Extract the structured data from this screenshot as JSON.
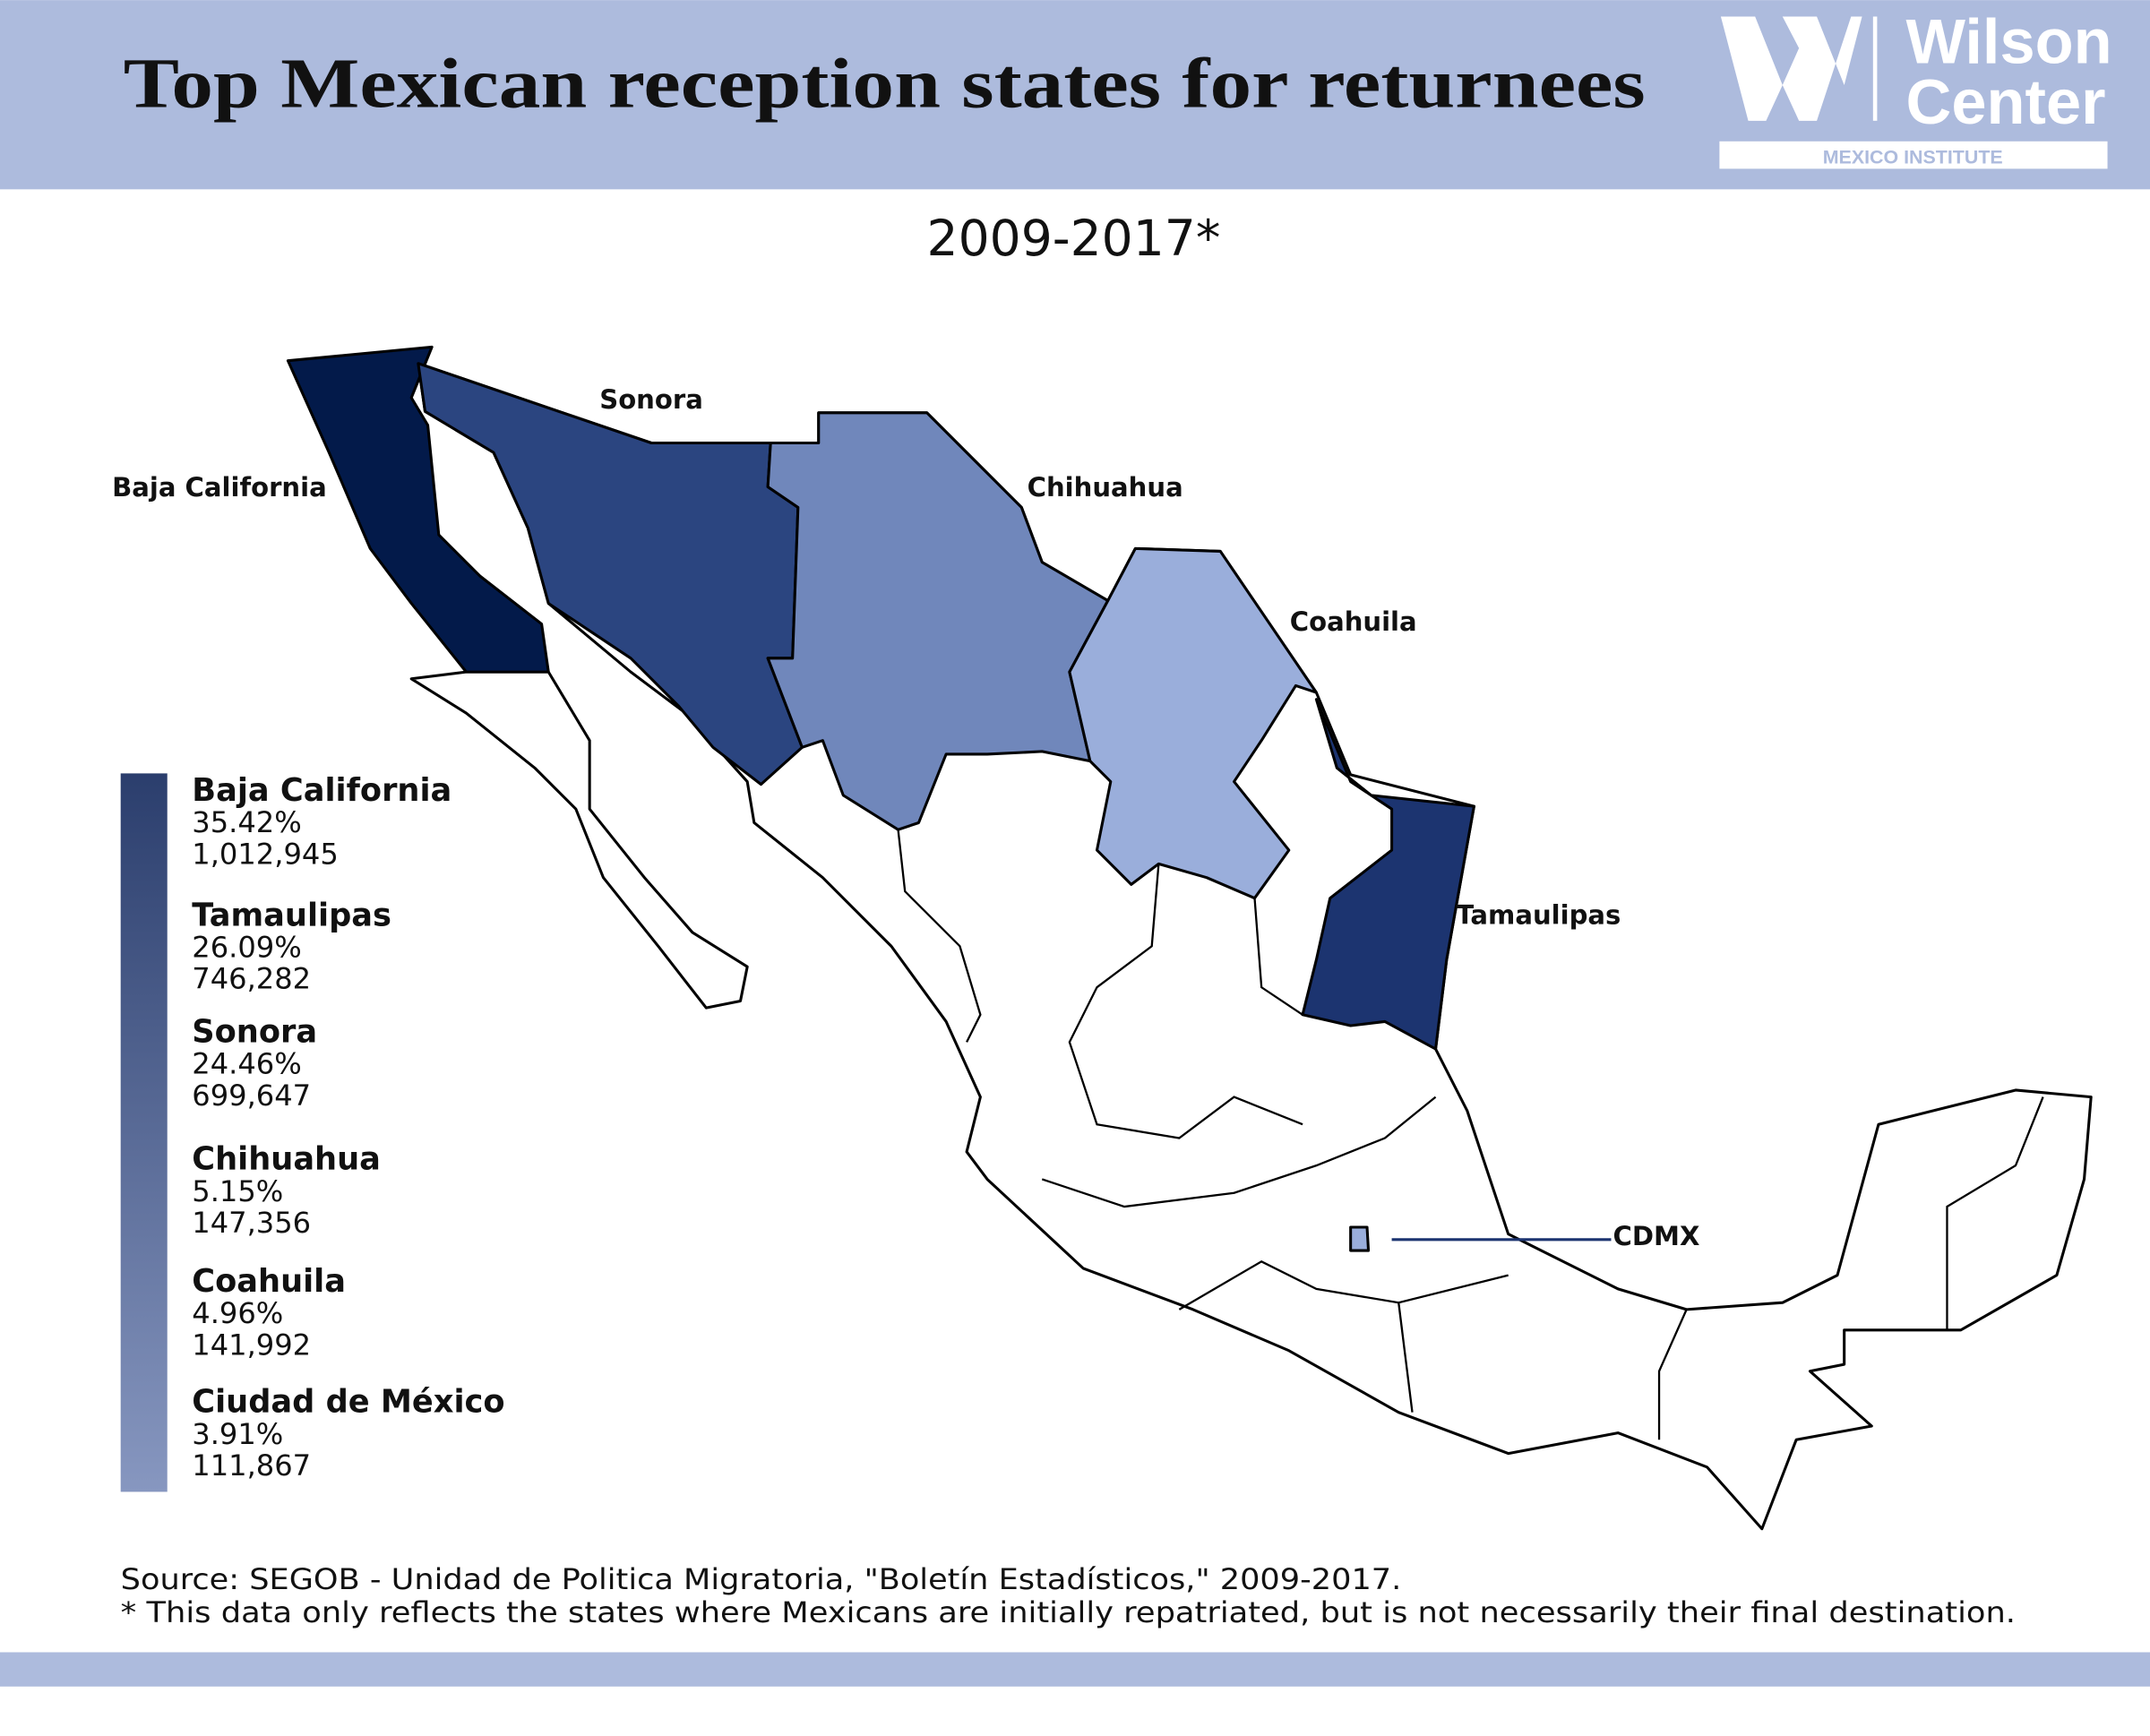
{
  "header": {
    "title": "Top Mexican reception states for returnees",
    "logo": {
      "line1": "Wilson",
      "line2": "Center",
      "subtitle": "MEXICO INSTITUTE"
    }
  },
  "subtitle": "2009-2017*",
  "map": {
    "labels": [
      "Sonora",
      "Baja California",
      "Chihuahua",
      "Coahuila",
      "Tamaulipas",
      "CDMX"
    ]
  },
  "legend": [
    {
      "name": "Baja California",
      "percent": "35.42%",
      "count": "1,012,945"
    },
    {
      "name": "Tamaulipas",
      "percent": "26.09%",
      "count": "746,282"
    },
    {
      "name": "Sonora",
      "percent": "24.46%",
      "count": "699,647"
    },
    {
      "name": "Chihuahua",
      "percent": "5.15%",
      "count": "147,356"
    },
    {
      "name": "Coahuila",
      "percent": "4.96%",
      "count": "141,992"
    },
    {
      "name": "Ciudad de México",
      "percent": "3.91%",
      "count": "111,867"
    }
  ],
  "footer": {
    "source": "Source: SEGOB - Unidad de Politica Migratoria, \"Boletín Estadísticos,\" 2009-2017.",
    "note": "* This data only reflects the states where Mexicans are initially repatriated, but is not necessarily their final destination."
  }
}
